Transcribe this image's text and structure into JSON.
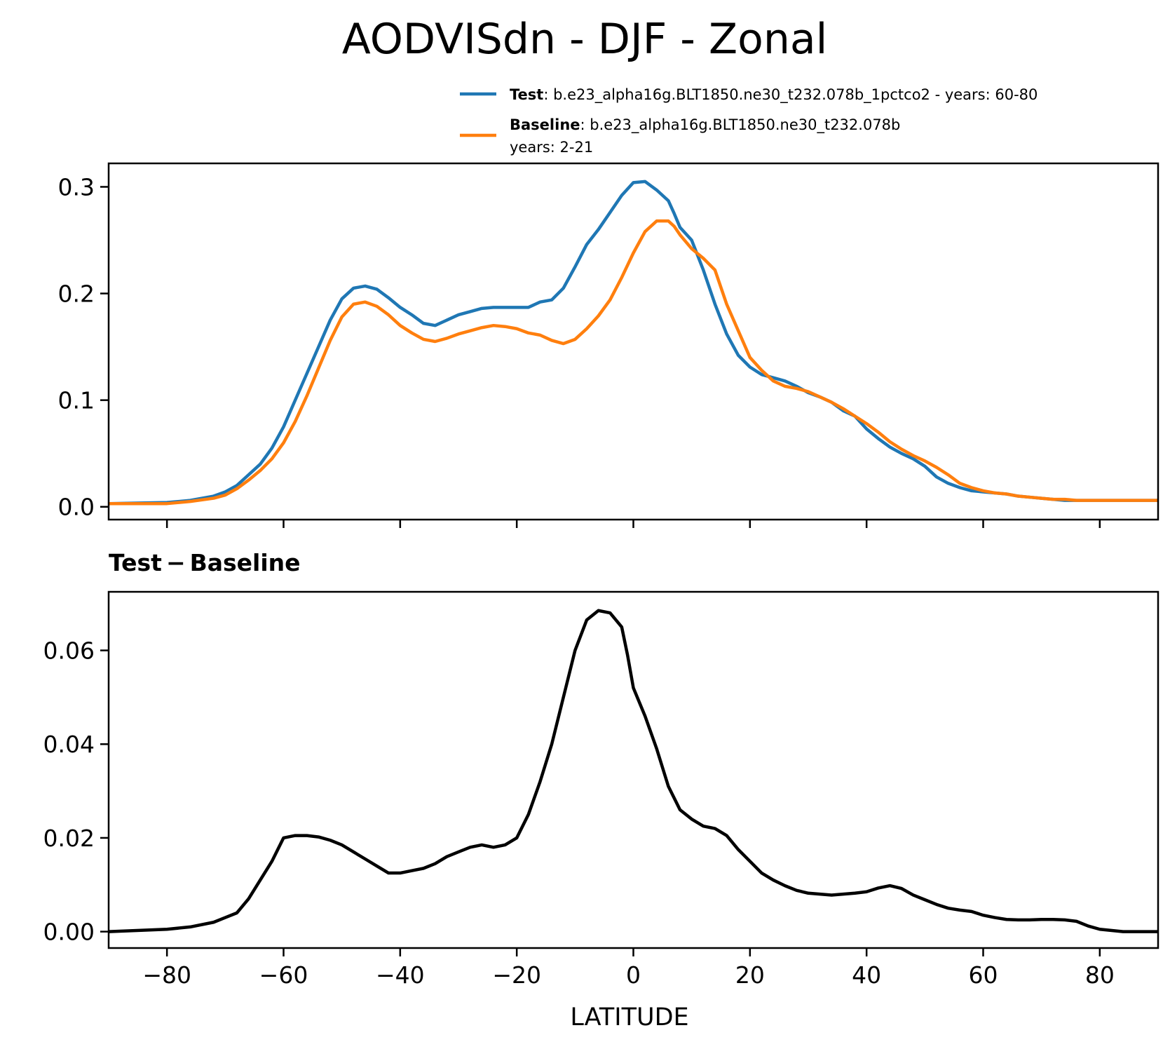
{
  "chart_data": {
    "suptitle": "AODVISdn - DJF - Zonal",
    "xlabel": "LATITUDE",
    "xlim": [
      -90,
      90
    ],
    "xticks": [
      -80,
      -60,
      -40,
      -20,
      0,
      20,
      40,
      60,
      80
    ],
    "xtick_labels": [
      "−80",
      "−60",
      "−40",
      "−20",
      "0",
      "20",
      "40",
      "60",
      "80"
    ],
    "charts": [
      {
        "type": "line",
        "ylim": [
          -0.012,
          0.322
        ],
        "yticks": [
          0.0,
          0.1,
          0.2,
          0.3
        ],
        "ytick_labels": [
          "0.0",
          "0.1",
          "0.2",
          "0.3"
        ],
        "legend": {
          "placement": "above-top-right",
          "entries": [
            {
              "name_bold": "Test",
              "text": ": b.e23_alpha16g.BLT1850.ne30_t232.078b_1pctco2 - years: 60-80",
              "text2": "",
              "color": "#1f77b4"
            },
            {
              "name_bold": "Baseline",
              "text": ": b.e23_alpha16g.BLT1850.ne30_t232.078b",
              "text2": "years: 2-21",
              "color": "#ff7f0e"
            }
          ]
        },
        "x": [
          -90,
          -80,
          -76,
          -72,
          -70,
          -68,
          -66,
          -64,
          -62,
          -60,
          -58,
          -56,
          -54,
          -52,
          -50,
          -48,
          -46,
          -44,
          -42,
          -40,
          -38,
          -36,
          -34,
          -32,
          -30,
          -28,
          -26,
          -24,
          -22,
          -20,
          -18,
          -16,
          -14,
          -12,
          -10,
          -8,
          -6,
          -4,
          -2,
          0,
          2,
          4,
          6,
          7,
          8,
          10,
          12,
          14,
          16,
          18,
          20,
          22,
          24,
          26,
          28,
          30,
          32,
          34,
          36,
          38,
          40,
          42,
          44,
          46,
          48,
          50,
          52,
          54,
          56,
          58,
          60,
          62,
          64,
          66,
          68,
          70,
          72,
          74,
          76,
          78,
          80,
          84,
          90
        ],
        "series": [
          {
            "name": "Test",
            "color": "#1f77b4",
            "values": [
              0.003,
              0.004,
              0.006,
              0.01,
              0.014,
              0.02,
              0.03,
              0.04,
              0.055,
              0.075,
              0.1,
              0.125,
              0.15,
              0.175,
              0.195,
              0.205,
              0.207,
              0.204,
              0.196,
              0.187,
              0.18,
              0.172,
              0.17,
              0.175,
              0.18,
              0.183,
              0.186,
              0.187,
              0.187,
              0.187,
              0.187,
              0.192,
              0.194,
              0.205,
              0.225,
              0.246,
              0.26,
              0.276,
              0.292,
              0.304,
              0.305,
              0.297,
              0.287,
              0.275,
              0.262,
              0.25,
              0.222,
              0.19,
              0.162,
              0.142,
              0.131,
              0.124,
              0.121,
              0.118,
              0.113,
              0.107,
              0.103,
              0.098,
              0.09,
              0.085,
              0.073,
              0.064,
              0.056,
              0.05,
              0.045,
              0.038,
              0.028,
              0.022,
              0.018,
              0.015,
              0.014,
              0.013,
              0.012,
              0.01,
              0.009,
              0.008,
              0.007,
              0.006,
              0.006,
              0.006,
              0.006,
              0.006,
              0.006
            ]
          },
          {
            "name": "Baseline",
            "color": "#ff7f0e",
            "values": [
              0.003,
              0.003,
              0.005,
              0.008,
              0.011,
              0.017,
              0.025,
              0.034,
              0.045,
              0.06,
              0.08,
              0.104,
              0.13,
              0.156,
              0.178,
              0.19,
              0.192,
              0.188,
              0.18,
              0.17,
              0.163,
              0.157,
              0.155,
              0.158,
              0.162,
              0.165,
              0.168,
              0.17,
              0.169,
              0.167,
              0.163,
              0.161,
              0.156,
              0.153,
              0.157,
              0.167,
              0.179,
              0.194,
              0.215,
              0.238,
              0.258,
              0.268,
              0.268,
              0.263,
              0.255,
              0.242,
              0.233,
              0.222,
              0.19,
              0.165,
              0.14,
              0.128,
              0.118,
              0.113,
              0.111,
              0.108,
              0.103,
              0.098,
              0.092,
              0.085,
              0.078,
              0.07,
              0.061,
              0.054,
              0.048,
              0.043,
              0.037,
              0.03,
              0.022,
              0.018,
              0.015,
              0.013,
              0.012,
              0.01,
              0.009,
              0.008,
              0.007,
              0.007,
              0.006,
              0.006,
              0.006,
              0.006,
              0.006
            ]
          }
        ]
      },
      {
        "type": "line",
        "title_bold_left": "Test",
        "title_sep": "−",
        "title_bold_right": "Baseline",
        "ylim": [
          -0.0035,
          0.0725
        ],
        "yticks": [
          0.0,
          0.02,
          0.04,
          0.06
        ],
        "ytick_labels": [
          "0.00",
          "0.02",
          "0.04",
          "0.06"
        ],
        "x": [
          -90,
          -80,
          -76,
          -72,
          -70,
          -68,
          -66,
          -64,
          -62,
          -60,
          -58,
          -56,
          -54,
          -52,
          -50,
          -48,
          -46,
          -44,
          -42,
          -40,
          -38,
          -36,
          -34,
          -32,
          -30,
          -28,
          -26,
          -24,
          -22,
          -20,
          -18,
          -16,
          -14,
          -12,
          -10,
          -8,
          -6,
          -4,
          -2,
          -1,
          0,
          2,
          4,
          6,
          8,
          10,
          12,
          14,
          16,
          18,
          20,
          22,
          24,
          26,
          28,
          30,
          32,
          34,
          36,
          38,
          40,
          42,
          44,
          46,
          48,
          50,
          52,
          54,
          56,
          58,
          60,
          62,
          64,
          66,
          68,
          70,
          72,
          74,
          76,
          78,
          80,
          84,
          90
        ],
        "series": [
          {
            "name": "Test−Baseline",
            "color": "#000000",
            "values": [
              0.0,
              0.0005,
              0.001,
              0.002,
              0.003,
              0.004,
              0.007,
              0.011,
              0.015,
              0.02,
              0.0205,
              0.0205,
              0.0202,
              0.0195,
              0.0185,
              0.017,
              0.0155,
              0.014,
              0.0125,
              0.0125,
              0.013,
              0.0135,
              0.0145,
              0.016,
              0.017,
              0.018,
              0.0185,
              0.018,
              0.0185,
              0.02,
              0.025,
              0.032,
              0.04,
              0.05,
              0.06,
              0.0665,
              0.0685,
              0.068,
              0.065,
              0.059,
              0.052,
              0.046,
              0.039,
              0.031,
              0.026,
              0.024,
              0.0225,
              0.022,
              0.0205,
              0.0175,
              0.015,
              0.0125,
              0.011,
              0.0098,
              0.0088,
              0.0082,
              0.008,
              0.0078,
              0.008,
              0.0082,
              0.0085,
              0.0093,
              0.0098,
              0.0092,
              0.0078,
              0.0068,
              0.0058,
              0.005,
              0.0046,
              0.0043,
              0.0035,
              0.003,
              0.0026,
              0.0025,
              0.0025,
              0.0026,
              0.0026,
              0.0025,
              0.0022,
              0.0012,
              0.0005,
              0.0,
              0.0
            ]
          }
        ]
      }
    ]
  }
}
